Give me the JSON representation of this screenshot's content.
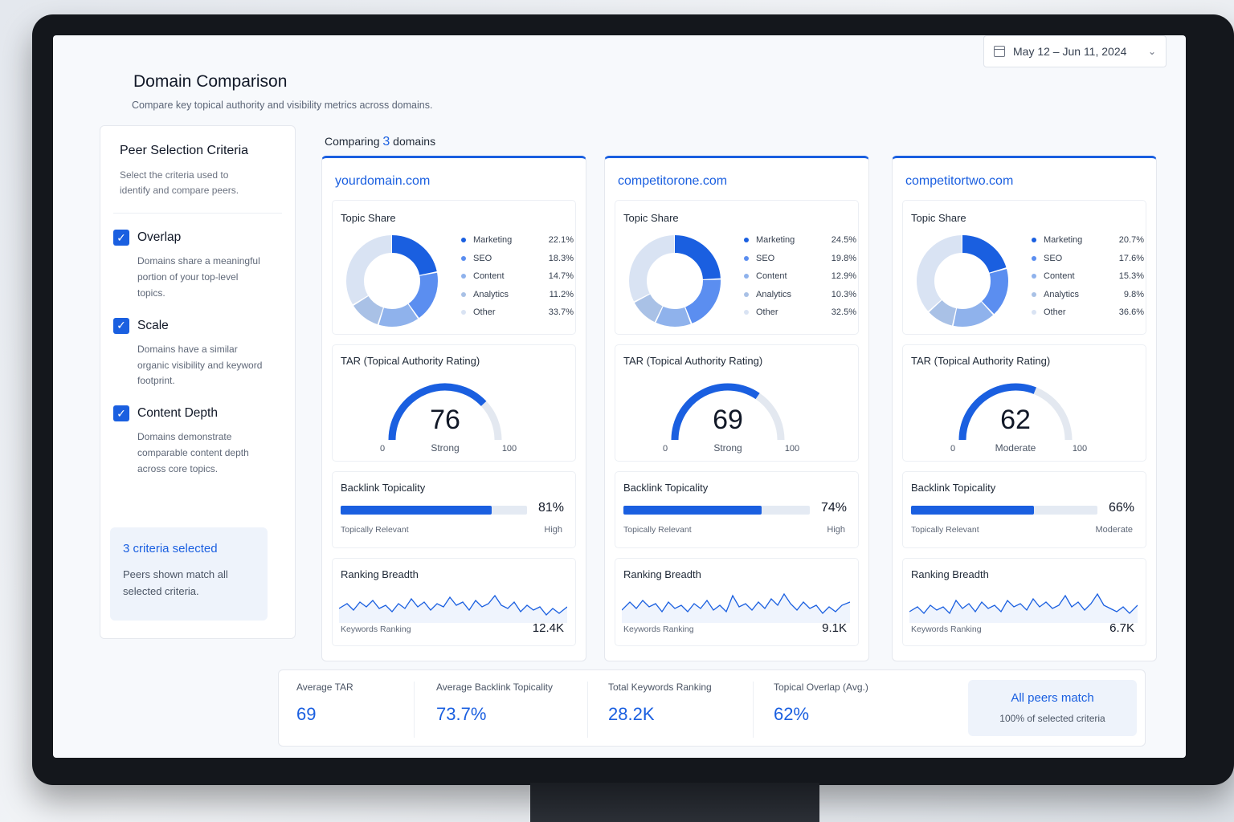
{
  "header": {
    "title": "Domain Comparison",
    "subtitle": "Compare key topical authority and visibility metrics across domains.",
    "date_range": "May 12 – Jun 11, 2024"
  },
  "sidebar": {
    "title": "Peer Selection Criteria",
    "subtitle": "Select the criteria used to identify and compare peers.",
    "criteria": [
      {
        "label": "Overlap",
        "description": "Domains share a meaningful portion of your top-level topics.",
        "checked": true
      },
      {
        "label": "Scale",
        "description": "Domains have a similar organic visibility and keyword footprint.",
        "checked": true
      },
      {
        "label": "Content Depth",
        "description": "Domains demonstrate comparable content depth across core topics.",
        "checked": true
      }
    ],
    "summary_title": "3 criteria selected",
    "summary_text": "Peers shown match all selected criteria."
  },
  "compare": {
    "prefix": "Comparing",
    "count": "3",
    "suffix": "domains"
  },
  "labels": {
    "topic_share": "Topic Share",
    "tar": "TAR (Topical Authority Rating)",
    "gauge_min": "0",
    "gauge_max": "100",
    "backlink": "Backlink Topicality",
    "backlink_caption": "Topically Relevant",
    "ranking": "Ranking Breadth",
    "ranking_caption": "Keywords Ranking"
  },
  "colors": {
    "accent": "#1a5fe0",
    "topic": [
      "#1a5fe0",
      "#5b8ef0",
      "#8fb2ec",
      "#a9c1e6",
      "#d9e3f3"
    ]
  },
  "domains": [
    {
      "name": "yourdomain.com",
      "topics": [
        {
          "label": "Marketing",
          "value": "22.1%",
          "share": 22.1
        },
        {
          "label": "SEO",
          "value": "18.3%",
          "share": 18.3
        },
        {
          "label": "Content",
          "value": "14.7%",
          "share": 14.7
        },
        {
          "label": "Analytics",
          "value": "11.2%",
          "share": 11.2
        },
        {
          "label": "Other",
          "value": "33.7%",
          "share": 33.7
        }
      ],
      "tar": "76",
      "tar_level": "Strong",
      "backlink_value": "81%",
      "backlink_fraction": 0.81,
      "backlink_level": "High",
      "keywords": "12.4K"
    },
    {
      "name": "competitorone.com",
      "topics": [
        {
          "label": "Marketing",
          "value": "24.5%",
          "share": 24.5
        },
        {
          "label": "SEO",
          "value": "19.8%",
          "share": 19.8
        },
        {
          "label": "Content",
          "value": "12.9%",
          "share": 12.9
        },
        {
          "label": "Analytics",
          "value": "10.3%",
          "share": 10.3
        },
        {
          "label": "Other",
          "value": "32.5%",
          "share": 32.5
        }
      ],
      "tar": "69",
      "tar_level": "Strong",
      "backlink_value": "74%",
      "backlink_fraction": 0.74,
      "backlink_level": "High",
      "keywords": "9.1K"
    },
    {
      "name": "competitortwo.com",
      "topics": [
        {
          "label": "Marketing",
          "value": "20.7%",
          "share": 20.7
        },
        {
          "label": "SEO",
          "value": "17.6%",
          "share": 17.6
        },
        {
          "label": "Content",
          "value": "15.3%",
          "share": 15.3
        },
        {
          "label": "Analytics",
          "value": "9.8%",
          "share": 9.8
        },
        {
          "label": "Other",
          "value": "36.6%",
          "share": 36.6
        }
      ],
      "tar": "62",
      "tar_level": "Moderate",
      "backlink_value": "66%",
      "backlink_fraction": 0.66,
      "backlink_level": "Moderate",
      "keywords": "6.7K"
    }
  ],
  "stats": [
    {
      "label": "Average TAR",
      "value": "69"
    },
    {
      "label": "Average Backlink Topicality",
      "value": "73.7%"
    },
    {
      "label": "Total Keywords Ranking",
      "value": "28.2K"
    },
    {
      "label": "Topical Overlap (Avg.)",
      "value": "62%"
    }
  ],
  "match": {
    "title": "All peers match",
    "subtitle": "100% of selected criteria"
  },
  "icons": {
    "date": "calendar-icon",
    "dropdown": "chevron-down-icon",
    "check": "check-icon"
  }
}
